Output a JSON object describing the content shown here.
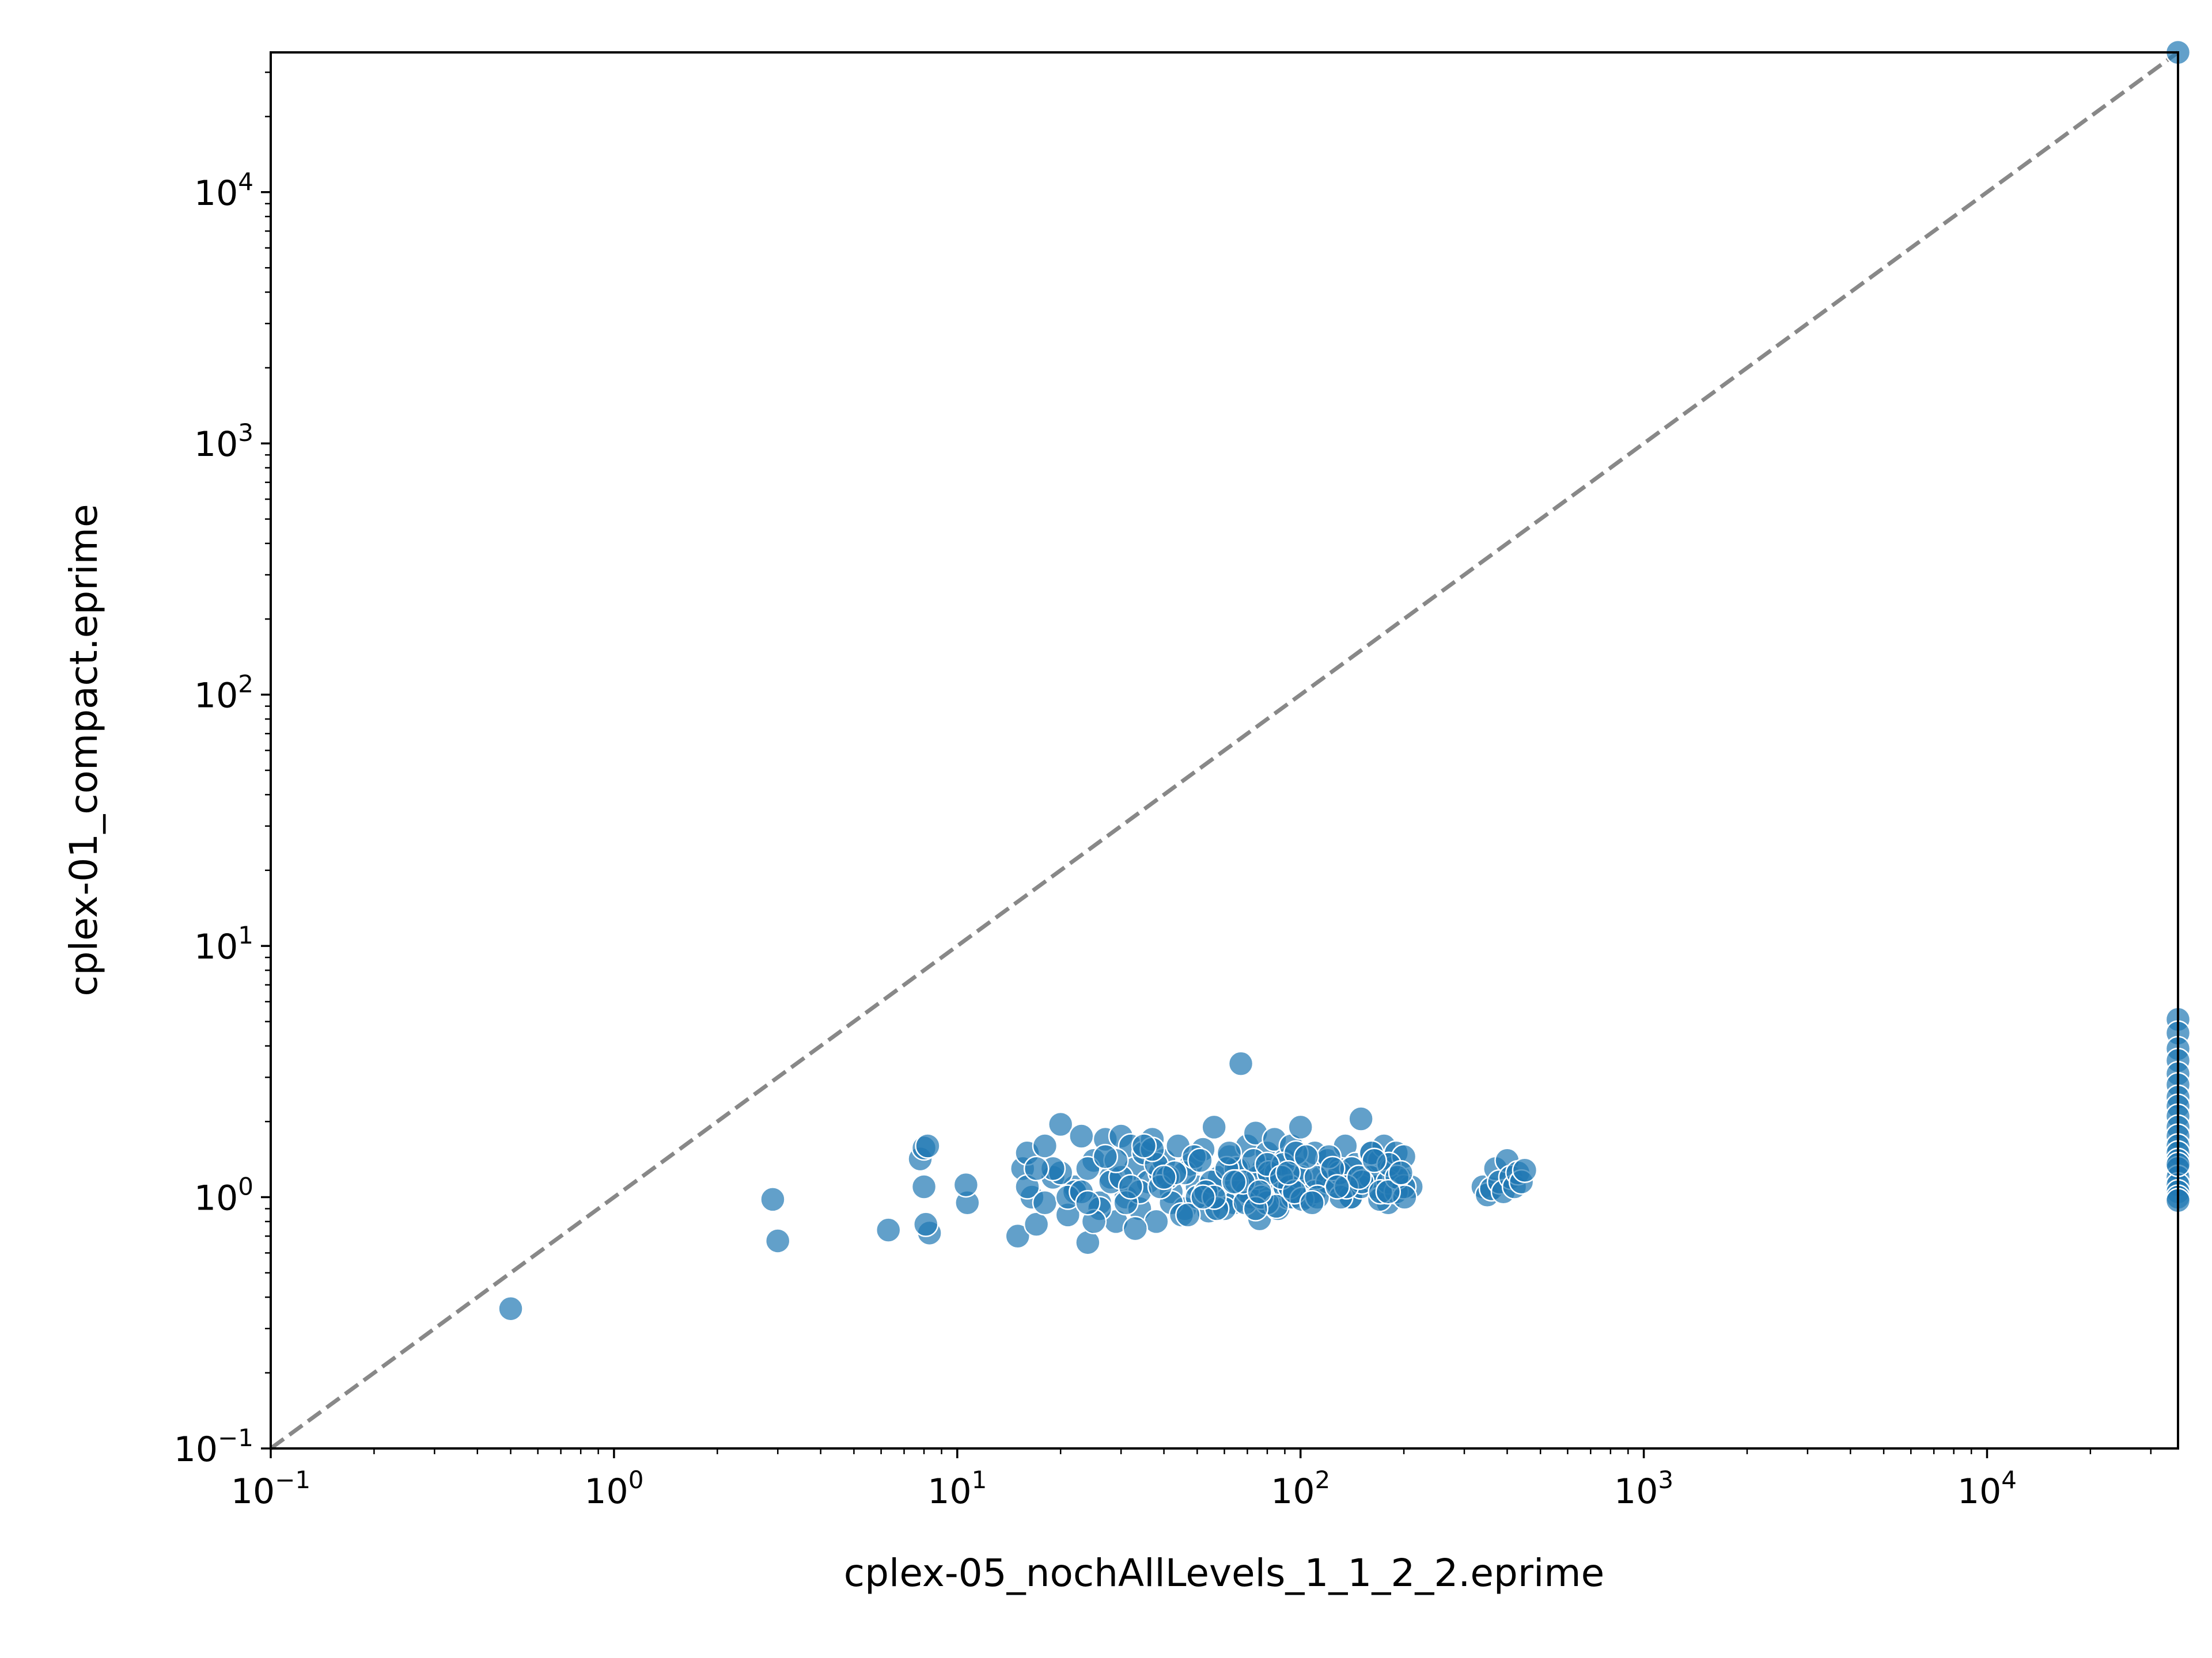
{
  "chart_data": {
    "type": "scatter",
    "title": "",
    "xlabel": "cplex-05_nochAllLevels_1_1_2_2.eprime",
    "ylabel": "cplex-01_compact.eprime",
    "xscale": "log",
    "yscale": "log",
    "xlim": [
      0.1,
      36000
    ],
    "ylim": [
      0.1,
      36000
    ],
    "x_tick_labels": [
      {
        "base": "10",
        "exp": "−1",
        "value": 0.1
      },
      {
        "base": "10",
        "exp": "0",
        "value": 1
      },
      {
        "base": "10",
        "exp": "1",
        "value": 10
      },
      {
        "base": "10",
        "exp": "2",
        "value": 100
      },
      {
        "base": "10",
        "exp": "3",
        "value": 1000
      },
      {
        "base": "10",
        "exp": "4",
        "value": 10000
      }
    ],
    "y_tick_labels": [
      {
        "base": "10",
        "exp": "−1",
        "value": 0.1
      },
      {
        "base": "10",
        "exp": "0",
        "value": 1
      },
      {
        "base": "10",
        "exp": "1",
        "value": 10
      },
      {
        "base": "10",
        "exp": "2",
        "value": 100
      },
      {
        "base": "10",
        "exp": "3",
        "value": 1000
      },
      {
        "base": "10",
        "exp": "4",
        "value": 10000
      }
    ],
    "grid": false,
    "reference_line": {
      "type": "y=x",
      "style": "dashed",
      "color": "#888888"
    },
    "marker_color": "#1f77b4",
    "marker_edge_color": "#ffffff",
    "series": [
      {
        "x": [
          0.5,
          2.9,
          3.0,
          6.3,
          7.8,
          8.0,
          8.2,
          8.0,
          8.3,
          8.1,
          10.7,
          10.6,
          15,
          15.5,
          16,
          16.5,
          17,
          18,
          19,
          20,
          21,
          22,
          23,
          24,
          25,
          26,
          27,
          28,
          29,
          30,
          31,
          32,
          33,
          34,
          35,
          36,
          37,
          38,
          39,
          40,
          42,
          44,
          46,
          48,
          50,
          52,
          54,
          56,
          58,
          60,
          62,
          64,
          66,
          67,
          68,
          70,
          72,
          74,
          76,
          78,
          80,
          82,
          84,
          86,
          88,
          90,
          92,
          94,
          96,
          98,
          100,
          105,
          110,
          115,
          120,
          125,
          130,
          135,
          140,
          145,
          150,
          155,
          160,
          165,
          170,
          175,
          180,
          185,
          190,
          195,
          200,
          210,
          16,
          18,
          20,
          22,
          24,
          26,
          28,
          30,
          34,
          38,
          42,
          46,
          50,
          55,
          60,
          65,
          70,
          75,
          80,
          85,
          90,
          95,
          100,
          110,
          120,
          130,
          140,
          150,
          160,
          170,
          180,
          190,
          200,
          21,
          25,
          29,
          33,
          37,
          41,
          45,
          49,
          53,
          57,
          61,
          65,
          69,
          73,
          77,
          81,
          85,
          89,
          93,
          97,
          101,
          111,
          121,
          131,
          141,
          151,
          161,
          171,
          181,
          191,
          201,
          19,
          23,
          27,
          31,
          35,
          39,
          43,
          47,
          51,
          56,
          62,
          68,
          74,
          80,
          88,
          96,
          104,
          112,
          124,
          136,
          148,
          164,
          180,
          196,
          17,
          24,
          32,
          40,
          52,
          64,
          76,
          92,
          108,
          128,
          340,
          350,
          360,
          370,
          380,
          390,
          400,
          410,
          420,
          430,
          440,
          450,
          36000,
          36000,
          36000,
          36000,
          36000,
          36000,
          36000,
          36000,
          36000,
          36000,
          36000,
          36000,
          36000,
          36000,
          36000,
          36000,
          36000,
          36000,
          36000,
          36000,
          36000,
          36000
        ],
        "y": [
          0.36,
          0.98,
          0.67,
          0.74,
          1.42,
          1.57,
          1.6,
          1.1,
          0.72,
          0.78,
          0.95,
          1.12,
          0.7,
          1.3,
          1.5,
          1.0,
          0.78,
          1.6,
          1.2,
          1.95,
          0.85,
          1.1,
          1.75,
          0.66,
          1.4,
          0.95,
          1.7,
          1.2,
          0.8,
          1.75,
          1.0,
          1.6,
          1.3,
          0.9,
          1.5,
          1.15,
          1.7,
          0.8,
          1.25,
          1.4,
          1.05,
          1.6,
          0.9,
          1.35,
          1.1,
          1.55,
          0.88,
          1.9,
          1.2,
          1.0,
          1.45,
          0.95,
          1.3,
          3.4,
          1.1,
          1.6,
          1.0,
          1.8,
          0.82,
          1.3,
          1.5,
          1.05,
          1.7,
          0.9,
          1.2,
          1.4,
          1.0,
          1.6,
          1.1,
          1.3,
          1.9,
          1.0,
          1.5,
          1.2,
          1.4,
          1.1,
          1.3,
          1.6,
          1.0,
          1.35,
          2.05,
          1.2,
          1.5,
          1.1,
          1.4,
          1.6,
          0.95,
          1.3,
          1.5,
          1.2,
          1.45,
          1.1,
          1.1,
          0.95,
          1.25,
          1.05,
          1.3,
          0.9,
          1.15,
          1.2,
          1.05,
          1.35,
          0.95,
          1.25,
          1.0,
          1.15,
          0.9,
          1.3,
          1.05,
          1.2,
          0.95,
          1.25,
          1.1,
          1.0,
          1.2,
          1.05,
          1.15,
          1.25,
          1.0,
          1.1,
          1.2,
          0.98,
          1.15,
          1.05,
          1.1,
          1.0,
          0.8,
          1.4,
          0.75,
          1.55,
          1.2,
          0.85,
          1.45,
          1.05,
          0.9,
          1.3,
          1.15,
          0.95,
          1.4,
          1.0,
          1.25,
          0.92,
          1.35,
          1.1,
          1.5,
          0.98,
          1.2,
          1.45,
          1.0,
          1.3,
          1.15,
          1.5,
          1.05,
          1.35,
          1.2,
          1.0,
          1.3,
          1.05,
          1.45,
          0.95,
          1.6,
          1.1,
          1.25,
          0.85,
          1.4,
          1.0,
          1.5,
          1.15,
          0.9,
          1.35,
          1.2,
          1.05,
          1.45,
          1.0,
          1.3,
          1.1,
          1.2,
          1.4,
          1.05,
          1.25,
          1.3,
          0.95,
          1.1,
          1.2,
          1.0,
          1.15,
          1.05,
          1.25,
          0.95,
          1.1,
          1.1,
          1.02,
          1.08,
          1.3,
          1.15,
          1.05,
          1.4,
          1.2,
          1.1,
          1.25,
          1.15,
          1.28,
          36000,
          5.1,
          4.5,
          3.9,
          3.5,
          3.1,
          2.8,
          2.5,
          2.3,
          2.1,
          1.9,
          1.75,
          1.6,
          1.5,
          1.4,
          1.3,
          1.2,
          1.12,
          1.05,
          1.0,
          0.97,
          1.35
        ]
      }
    ]
  }
}
